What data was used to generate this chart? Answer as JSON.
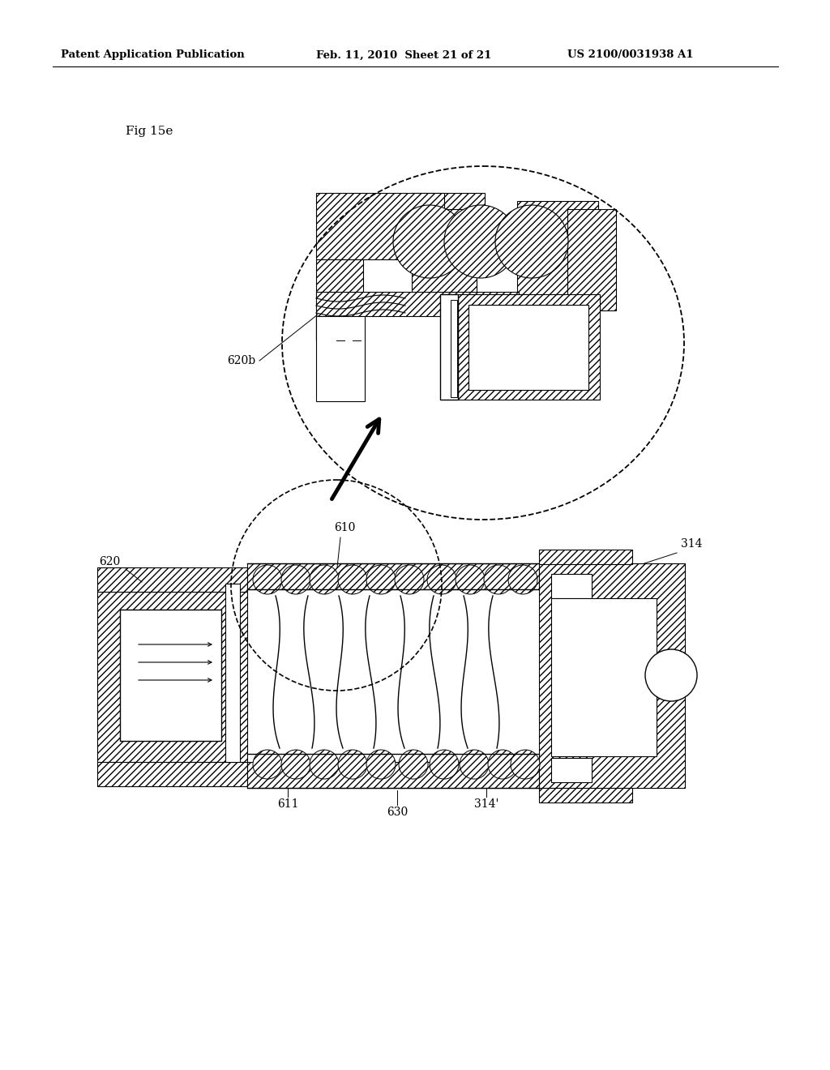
{
  "bg_color": "#ffffff",
  "header_left": "Patent Application Publication",
  "header_center": "Feb. 11, 2010  Sheet 21 of 21",
  "header_right": "US 2100/0031938 A1",
  "fig_label": "Fig 15e"
}
